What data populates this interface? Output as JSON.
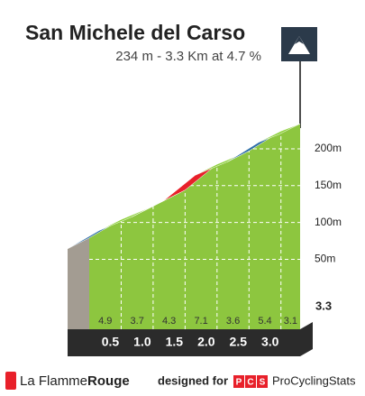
{
  "chart_data": {
    "type": "climb-profile",
    "title": "San Michele del Carso",
    "subtitle": "234 m - 3.3 Km at 4.7 %",
    "x": [
      0,
      0.5,
      1,
      1.5,
      2,
      2.5,
      3,
      3.3
    ],
    "elevation": [
      79,
      104,
      122,
      144,
      179,
      197,
      224,
      234
    ],
    "gradients": [
      4.9,
      3.7,
      4.3,
      7.1,
      3.6,
      5.4,
      3.1
    ],
    "segment_colors": [
      "#2f6fa8",
      "#8dd13a",
      "#2f6fa8",
      "#e8202a",
      "#8dd13a",
      "#2f6fa8",
      "#8dd13a"
    ],
    "face_color": "#8dc63f",
    "xlim": [
      0,
      3.3
    ],
    "xticks": [
      0.5,
      {
        "value": 1,
        "label": "1.0"
      },
      1.5,
      {
        "value": 2,
        "label": "2.0"
      },
      2.5,
      {
        "value": 3,
        "label": "3.0"
      },
      3.3
    ],
    "ylim": [
      -45,
      260
    ],
    "yticks": [
      {
        "value": 50,
        "label": "50m"
      },
      {
        "value": 100,
        "label": "100m"
      },
      {
        "value": 150,
        "label": "150m"
      },
      {
        "value": 200,
        "label": "200m"
      }
    ],
    "grid": true
  },
  "footer": {
    "brand_light": "La Flamme",
    "brand_bold": "Rouge",
    "designed": "designed for",
    "pcs_letters": [
      "P",
      "C",
      "S"
    ],
    "pcs_name": "ProCyclingStats"
  }
}
